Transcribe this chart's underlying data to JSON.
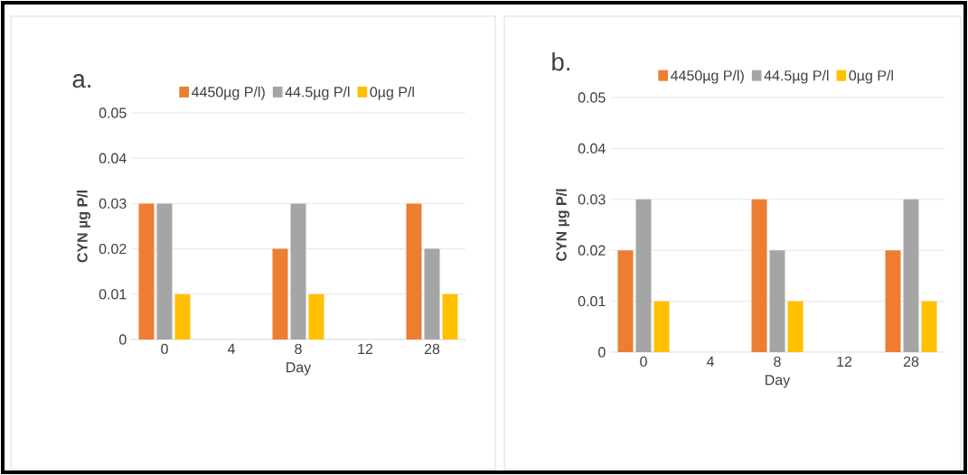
{
  "chart_data": [
    {
      "type": "bar",
      "title": "a.",
      "categories": [
        "0",
        "4",
        "8",
        "12",
        "28"
      ],
      "xlabel": "Day",
      "ylabel": "CYN µg P/l",
      "ylim": [
        0,
        0.05
      ],
      "yticks": [
        0,
        0.01,
        0.02,
        0.03,
        0.04,
        0.05
      ],
      "grid": "y",
      "legend": "top",
      "series": [
        {
          "name": "4450µg P/l)",
          "color": "#ed7d31",
          "values": [
            0.03,
            0,
            0.02,
            0,
            0.03
          ]
        },
        {
          "name": "44.5µg P/l",
          "color": "#a5a5a5",
          "values": [
            0.03,
            0,
            0.03,
            0,
            0.02
          ]
        },
        {
          "name": "0µg P/l",
          "color": "#ffc000",
          "values": [
            0.01,
            0,
            0.01,
            0,
            0.01
          ]
        }
      ]
    },
    {
      "type": "bar",
      "title": "b.",
      "categories": [
        "0",
        "4",
        "8",
        "12",
        "28"
      ],
      "xlabel": "Day",
      "ylabel": "CYN µg P/l",
      "ylim": [
        0,
        0.05
      ],
      "yticks": [
        0,
        0.01,
        0.02,
        0.03,
        0.04,
        0.05
      ],
      "grid": "y",
      "legend": "top",
      "series": [
        {
          "name": "4450µg P/l)",
          "color": "#ed7d31",
          "values": [
            0.02,
            0,
            0.03,
            0,
            0.02
          ]
        },
        {
          "name": "44.5µg P/l",
          "color": "#a5a5a5",
          "values": [
            0.03,
            0,
            0.02,
            0,
            0.03
          ]
        },
        {
          "name": "0µg P/l",
          "color": "#ffc000",
          "values": [
            0.01,
            0,
            0.01,
            0,
            0.01
          ]
        }
      ]
    }
  ]
}
